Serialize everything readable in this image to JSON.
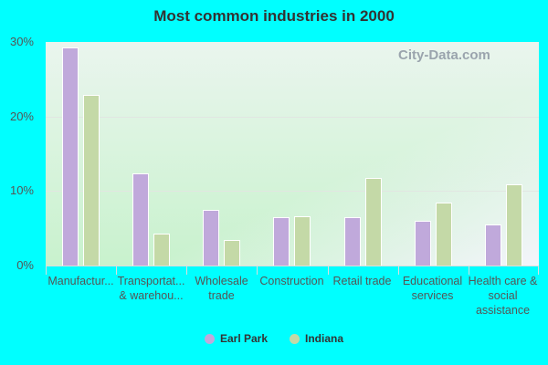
{
  "chart_data": {
    "type": "bar",
    "title": "Most common industries in 2000",
    "xlabel": "",
    "ylabel": "",
    "ylim": [
      0,
      30
    ],
    "yticks": [
      "0%",
      "10%",
      "20%",
      "30%"
    ],
    "categories": [
      "Manufactur...",
      "Transportat... & warehou...",
      "Wholesale trade",
      "Construction",
      "Retail trade",
      "Educational services",
      "Health care & social assistance"
    ],
    "series": [
      {
        "name": "Earl Park",
        "color": "#c0a9db",
        "values": [
          29.3,
          12.4,
          7.5,
          6.5,
          6.5,
          6.0,
          5.5
        ]
      },
      {
        "name": "Indiana",
        "color": "#c4d9a7",
        "values": [
          22.9,
          4.3,
          3.4,
          6.6,
          11.8,
          8.4,
          10.9
        ]
      }
    ],
    "grid": true,
    "legend_position": "bottom"
  },
  "title": "Most common industries in 2000",
  "yaxis": {
    "t0": "0%",
    "t10": "10%",
    "t20": "20%",
    "t30": "30%"
  },
  "xlabels": {
    "c0": "Manufactur...",
    "c1": "Transportat... & warehou...",
    "c2": "Wholesale trade",
    "c3": "Construction",
    "c4": "Retail trade",
    "c5": "Educational services",
    "c6": "Health care & social assistance"
  },
  "legend": {
    "s0": "Earl Park",
    "s1": "Indiana"
  },
  "watermark": "City-Data.com"
}
